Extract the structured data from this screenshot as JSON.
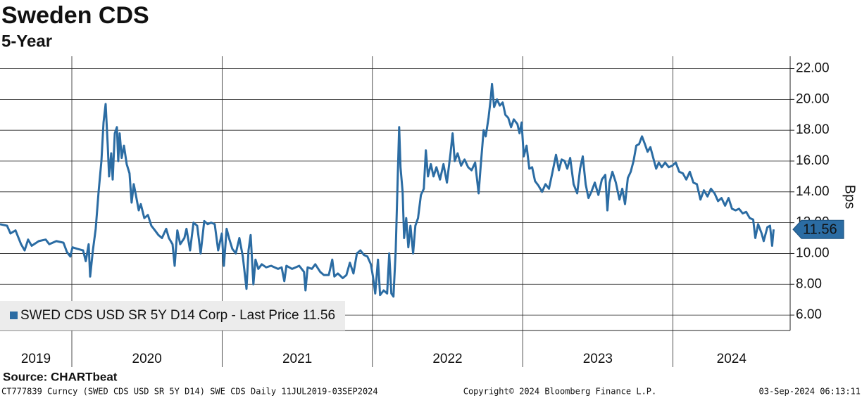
{
  "chart_data": {
    "type": "line",
    "title": "Sweden CDS",
    "subtitle": "5-Year",
    "y_label": "Bps",
    "source": "Source: CHARTbeat",
    "footer_left": "CT777839 Curncy (SWED CDS USD SR 5Y D14) SWE CDS  Daily 11JUL2019-03SEP2024",
    "footer_center": "Copyright© 2024 Bloomberg Finance L.P.",
    "footer_right": "03-Sep-2024 06:13:11",
    "legend": "lower left",
    "grid": true,
    "xlim": [
      2019.522,
      2024.78
    ],
    "xticks": [
      2020,
      2021,
      2022,
      2023,
      2024
    ],
    "year_labels": [
      2019,
      2020,
      2021,
      2022,
      2023,
      2024
    ],
    "ylim": [
      5,
      22.8
    ],
    "yticks": [
      {
        "value": 6,
        "label": "6.00"
      },
      {
        "value": 8,
        "label": "8.00"
      },
      {
        "value": 10,
        "label": "10.00"
      },
      {
        "value": 12,
        "label": "12.00"
      },
      {
        "value": 14,
        "label": "14.00"
      },
      {
        "value": 16,
        "label": "16.00"
      },
      {
        "value": 18,
        "label": "18.00"
      },
      {
        "value": 20,
        "label": "20.00"
      },
      {
        "value": 22,
        "label": "22.00"
      }
    ],
    "x": [
      2019.522,
      2019.569,
      2019.592,
      2019.625,
      2019.662,
      2019.686,
      2019.709,
      2019.733,
      2019.78,
      2019.826,
      2019.85,
      2019.897,
      2019.944,
      2019.967,
      2019.99,
      2020.004,
      2020.037,
      2020.075,
      2020.093,
      2020.112,
      2020.122,
      2020.14,
      2020.159,
      2020.178,
      2020.197,
      2020.211,
      2020.225,
      2020.239,
      2020.248,
      2020.262,
      2020.272,
      2020.286,
      2020.3,
      2020.309,
      2020.318,
      2020.332,
      2020.347,
      2020.365,
      2020.384,
      2020.398,
      2020.412,
      2020.426,
      2020.445,
      2020.459,
      2020.482,
      2020.506,
      2020.529,
      2020.553,
      2020.576,
      2020.6,
      2020.628,
      2020.646,
      2020.67,
      2020.684,
      2020.702,
      2020.721,
      2020.749,
      2020.763,
      2020.787,
      2020.81,
      2020.834,
      2020.857,
      2020.881,
      2020.904,
      2020.927,
      2020.951,
      2020.974,
      2020.998,
      2021.012,
      2021.03,
      2021.049,
      2021.068,
      2021.091,
      2021.115,
      2021.138,
      2021.162,
      2021.176,
      2021.19,
      2021.208,
      2021.222,
      2021.241,
      2021.264,
      2021.293,
      2021.326,
      2021.372,
      2021.396,
      2021.414,
      2021.428,
      2021.466,
      2021.513,
      2021.545,
      2021.555,
      2021.569,
      2021.597,
      2021.62,
      2021.653,
      2021.677,
      2021.71,
      2021.733,
      2021.747,
      2021.77,
      2021.803,
      2021.827,
      2021.85,
      2021.874,
      2021.897,
      2021.92,
      2021.944,
      2021.967,
      2021.99,
      2022.004,
      2022.019,
      2022.037,
      2022.051,
      2022.075,
      2022.098,
      2022.112,
      2022.126,
      2022.14,
      2022.155,
      2022.169,
      2022.178,
      2022.187,
      2022.201,
      2022.211,
      2022.225,
      2022.239,
      2022.253,
      2022.271,
      2022.286,
      2022.304,
      2022.323,
      2022.342,
      2022.356,
      2022.37,
      2022.389,
      2022.407,
      2022.426,
      2022.45,
      2022.473,
      2022.496,
      2022.52,
      2022.534,
      2022.548,
      2022.567,
      2022.59,
      2022.613,
      2022.637,
      2022.66,
      2022.684,
      2022.707,
      2022.721,
      2022.74,
      2022.754,
      2022.773,
      2022.787,
      2022.796,
      2022.81,
      2022.829,
      2022.848,
      2022.867,
      2022.885,
      2022.904,
      2022.923,
      2022.941,
      2022.965,
      2022.979,
      2022.993,
      2023.007,
      2023.026,
      2023.044,
      2023.063,
      2023.082,
      2023.105,
      2023.129,
      2023.152,
      2023.175,
      2023.199,
      2023.222,
      2023.241,
      2023.26,
      2023.279,
      2023.297,
      2023.316,
      2023.339,
      2023.363,
      2023.382,
      2023.4,
      2023.419,
      2023.438,
      2023.457,
      2023.48,
      2023.504,
      2023.527,
      2023.55,
      2023.564,
      2023.578,
      2023.597,
      2023.62,
      2023.644,
      2023.663,
      2023.681,
      2023.7,
      2023.719,
      2023.738,
      2023.756,
      2023.775,
      2023.794,
      2023.813,
      2023.831,
      2023.85,
      2023.869,
      2023.888,
      2023.906,
      2023.925,
      2023.948,
      2023.972,
      2023.995,
      2024.019,
      2024.042,
      2024.066,
      2024.089,
      2024.112,
      2024.136,
      2024.159,
      2024.183,
      2024.206,
      2024.23,
      2024.253,
      2024.277,
      2024.3,
      2024.323,
      2024.347,
      2024.37,
      2024.393,
      2024.417,
      2024.44,
      2024.464,
      2024.487,
      2024.511,
      2024.534,
      2024.548,
      2024.567,
      2024.59,
      2024.604,
      2024.628,
      2024.646,
      2024.66,
      2024.67
    ],
    "series": [
      {
        "name": "SWED CDS USD SR 5Y D14 Corp - Last Price 11.56",
        "color": "#2b6ca3",
        "values": [
          11.9,
          11.8,
          11.3,
          11.5,
          10.6,
          10.2,
          10.9,
          10.5,
          10.8,
          10.9,
          10.6,
          10.8,
          10.7,
          10.1,
          9.8,
          10.4,
          10.3,
          10.2,
          9.5,
          10.6,
          8.5,
          10.2,
          11.6,
          14.0,
          16.0,
          18.5,
          19.7,
          17.0,
          15.0,
          16.5,
          14.8,
          17.8,
          18.2,
          16.0,
          17.8,
          16.2,
          17.0,
          15.8,
          15.2,
          13.3,
          14.5,
          13.8,
          12.8,
          13.2,
          12.3,
          12.5,
          11.8,
          11.5,
          11.2,
          11.0,
          11.6,
          11.0,
          10.6,
          9.2,
          11.5,
          10.6,
          11.0,
          11.6,
          10.2,
          12.0,
          11.8,
          10.0,
          12.1,
          11.9,
          12.0,
          11.9,
          10.2,
          11.3,
          9.2,
          11.6,
          10.9,
          10.3,
          10.0,
          11.0,
          9.8,
          7.7,
          10.2,
          11.2,
          8.0,
          9.6,
          9.0,
          9.3,
          9.1,
          9.2,
          9.0,
          9.1,
          8.2,
          9.2,
          9.0,
          9.2,
          8.8,
          7.6,
          9.1,
          9.0,
          9.3,
          8.8,
          8.6,
          8.6,
          9.6,
          8.5,
          8.7,
          8.4,
          8.6,
          9.4,
          8.7,
          10.0,
          10.2,
          9.9,
          9.8,
          9.3,
          8.5,
          7.4,
          9.6,
          7.3,
          7.6,
          7.4,
          10.0,
          7.4,
          7.2,
          10.2,
          15.0,
          18.2,
          15.6,
          14.0,
          11.0,
          12.3,
          10.4,
          11.8,
          10.0,
          11.8,
          12.3,
          13.8,
          14.2,
          16.7,
          15.0,
          15.8,
          15.0,
          15.6,
          14.8,
          15.8,
          14.6,
          16.5,
          17.8,
          16.0,
          16.5,
          15.7,
          16.1,
          15.6,
          15.4,
          15.9,
          13.9,
          15.7,
          18.0,
          17.6,
          18.8,
          20.0,
          21.0,
          19.5,
          20.0,
          19.6,
          19.8,
          19.0,
          18.8,
          18.2,
          18.7,
          18.4,
          17.8,
          18.5,
          16.3,
          17.0,
          15.5,
          15.6,
          14.7,
          14.4,
          14.0,
          14.5,
          14.2,
          15.3,
          16.4,
          15.4,
          16.1,
          16.0,
          15.5,
          16.2,
          14.5,
          13.9,
          15.5,
          16.3,
          14.5,
          13.6,
          14.0,
          14.6,
          13.8,
          14.8,
          15.1,
          12.8,
          14.6,
          15.3,
          14.6,
          13.5,
          14.2,
          13.2,
          14.9,
          15.3,
          16.0,
          17.0,
          17.1,
          17.6,
          17.1,
          16.6,
          16.9,
          16.2,
          15.5,
          15.9,
          15.6,
          15.9,
          15.6,
          15.7,
          15.9,
          15.3,
          15.2,
          14.8,
          15.3,
          14.6,
          14.5,
          13.5,
          14.1,
          13.7,
          14.2,
          13.9,
          13.4,
          13.6,
          13.1,
          13.6,
          12.9,
          12.8,
          12.9,
          12.6,
          12.7,
          12.3,
          12.2,
          11.0,
          11.9,
          11.3,
          10.8,
          11.7,
          11.8,
          10.5,
          11.56
        ]
      }
    ]
  }
}
